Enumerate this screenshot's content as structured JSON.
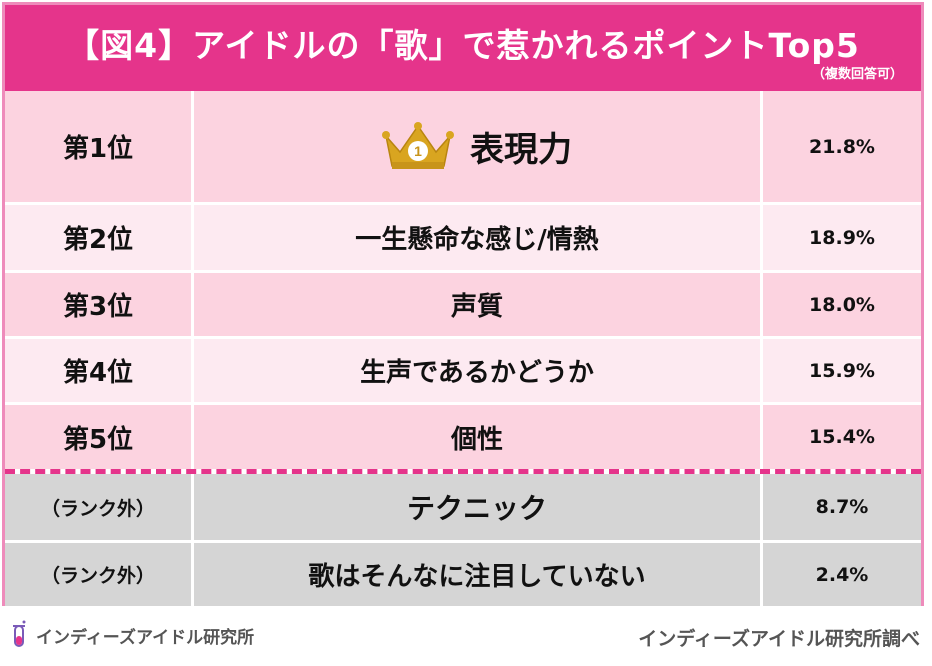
{
  "header": {
    "title": "【図4】アイドルの「歌」で惹かれるポイントTop5",
    "note": "（複数回答可）"
  },
  "rows": [
    {
      "rank": "第1位",
      "label": "表現力",
      "value": "21.8%"
    },
    {
      "rank": "第2位",
      "label": "一生懸命な感じ/情熱",
      "value": "18.9%"
    },
    {
      "rank": "第3位",
      "label": "声質",
      "value": "18.0%"
    },
    {
      "rank": "第4位",
      "label": "生声であるかどうか",
      "value": "15.9%"
    },
    {
      "rank": "第5位",
      "label": "個性",
      "value": "15.4%"
    },
    {
      "rank": "（ランク外）",
      "label": "テクニック",
      "value": "8.7%"
    },
    {
      "rank": "（ランク外）",
      "label": "歌はそんなに注目していない",
      "value": "2.4%"
    }
  ],
  "crown_number": "1",
  "footer": {
    "left": "インディーズアイドル研究所",
    "right": "インディーズアイドル研究所調べ"
  },
  "colors": {
    "accent": "#e5348b",
    "border": "#ee8bbb",
    "row_pink_dark": "#fcd3e0",
    "row_pink_light": "#fdeaf1",
    "row_grey": "#d5d5d5",
    "crown": "#d9a520"
  },
  "icons": [
    "crown-icon",
    "flask-icon"
  ]
}
